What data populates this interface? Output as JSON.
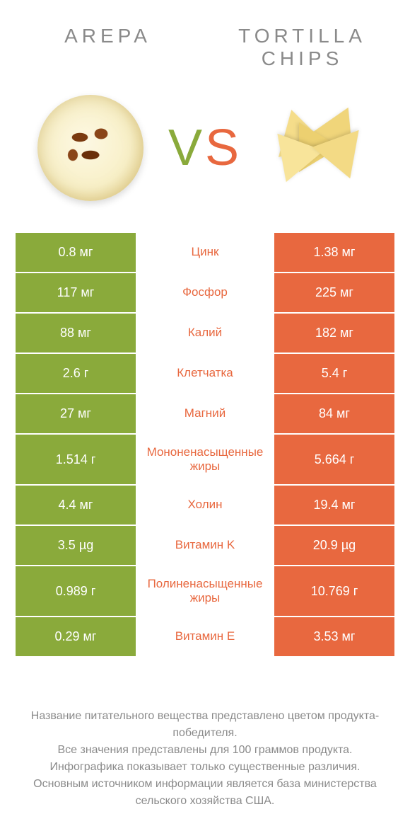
{
  "header": {
    "left_title": "Arepa",
    "right_title": "Tortilla chips"
  },
  "vs": {
    "v": "V",
    "s": "S"
  },
  "colors": {
    "green": "#8aaa3b",
    "orange": "#e8683f",
    "text_gray": "#8a8a8a",
    "background": "#ffffff"
  },
  "rows": [
    {
      "left": "0.8 мг",
      "mid": "Цинк",
      "mid_color": "orange",
      "right": "1.38 мг",
      "tall": false
    },
    {
      "left": "117 мг",
      "mid": "Фосфор",
      "mid_color": "orange",
      "right": "225 мг",
      "tall": false
    },
    {
      "left": "88 мг",
      "mid": "Калий",
      "mid_color": "orange",
      "right": "182 мг",
      "tall": false
    },
    {
      "left": "2.6 г",
      "mid": "Клетчатка",
      "mid_color": "orange",
      "right": "5.4 г",
      "tall": false
    },
    {
      "left": "27 мг",
      "mid": "Магний",
      "mid_color": "orange",
      "right": "84 мг",
      "tall": false
    },
    {
      "left": "1.514 г",
      "mid": "Мононенасыщенные жиры",
      "mid_color": "orange",
      "right": "5.664 г",
      "tall": true
    },
    {
      "left": "4.4 мг",
      "mid": "Холин",
      "mid_color": "orange",
      "right": "19.4 мг",
      "tall": false
    },
    {
      "left": "3.5 µg",
      "mid": "Витамин K",
      "mid_color": "orange",
      "right": "20.9 µg",
      "tall": false
    },
    {
      "left": "0.989 г",
      "mid": "Полиненасыщенные жиры",
      "mid_color": "orange",
      "right": "10.769 г",
      "tall": true
    },
    {
      "left": "0.29 мг",
      "mid": "Витамин E",
      "mid_color": "orange",
      "right": "3.53 мг",
      "tall": false
    }
  ],
  "footer": {
    "line1": "Название питательного вещества представлено цветом продукта-победителя.",
    "line2": "Все значения представлены для 100 граммов продукта.",
    "line3": "Инфографика показывает только существенные различия.",
    "line4": "Основным источником информации является база министерства сельского хозяйства США."
  }
}
